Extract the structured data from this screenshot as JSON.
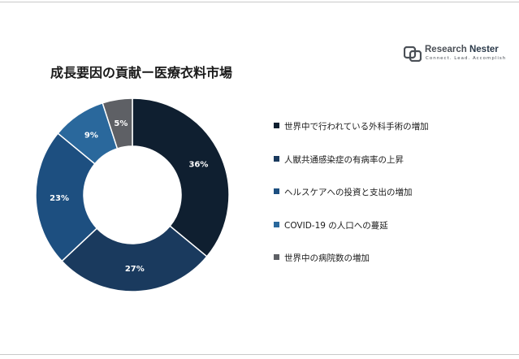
{
  "chart_data": {
    "type": "pie",
    "title": "成長要因の貢献ー医療衣料市場",
    "categories": [
      "世界中で行われている外科手術の増加",
      "人獣共通感染症の有病率の上昇",
      "ヘルスケアへの投資と支出の増加",
      "COVID-19 の人口への蔓延",
      "世界中の病院数の増加"
    ],
    "values": [
      36,
      27,
      23,
      9,
      5
    ],
    "value_labels": [
      "36%",
      "27%",
      "23%",
      "9%",
      "5%"
    ],
    "colors": [
      "#0f1f30",
      "#1a3a5e",
      "#1d4f80",
      "#2a689c",
      "#5e6065"
    ],
    "donut": true,
    "legend_position": "right"
  },
  "logo": {
    "name_part1": "Research ",
    "name_part2": "Nester",
    "tagline": "Connect. Lead. Accomplish"
  }
}
